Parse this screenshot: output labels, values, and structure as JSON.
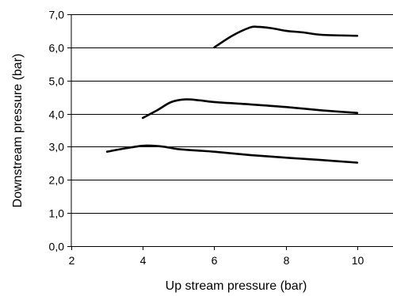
{
  "chart_data": {
    "type": "line",
    "xlabel": "Up stream pressure (bar)",
    "ylabel": "Downstream pressure (bar)",
    "xlim": [
      2,
      11
    ],
    "ylim": [
      0,
      7
    ],
    "xticks": [
      2,
      4,
      6,
      8,
      10
    ],
    "xtick_labels": [
      "2",
      "4",
      "6",
      "8",
      "10"
    ],
    "yticks": [
      0,
      1,
      2,
      3,
      4,
      5,
      6,
      7
    ],
    "ytick_labels": [
      "0,0",
      "1,0",
      "2,0",
      "3,0",
      "4,0",
      "5,0",
      "6,0",
      "7,0"
    ],
    "grid": "horizontal",
    "legend": "none",
    "line_color": "#000000",
    "series": [
      {
        "x": [
          6.0,
          6.5,
          7.0,
          7.2,
          7.6,
          8.0,
          8.5,
          9.0,
          10.0
        ],
        "y": [
          6.0,
          6.35,
          6.6,
          6.62,
          6.58,
          6.5,
          6.45,
          6.38,
          6.35
        ]
      },
      {
        "x": [
          4.0,
          4.4,
          4.8,
          5.2,
          5.6,
          6.0,
          7.0,
          8.0,
          9.0,
          10.0
        ],
        "y": [
          3.87,
          4.1,
          4.35,
          4.43,
          4.4,
          4.35,
          4.28,
          4.2,
          4.1,
          4.02
        ]
      },
      {
        "x": [
          3.0,
          3.5,
          4.0,
          4.3,
          4.6,
          5.0,
          6.0,
          7.0,
          8.0,
          9.0,
          10.0
        ],
        "y": [
          2.85,
          2.95,
          3.03,
          3.03,
          3.0,
          2.93,
          2.85,
          2.75,
          2.67,
          2.6,
          2.52
        ]
      }
    ]
  }
}
